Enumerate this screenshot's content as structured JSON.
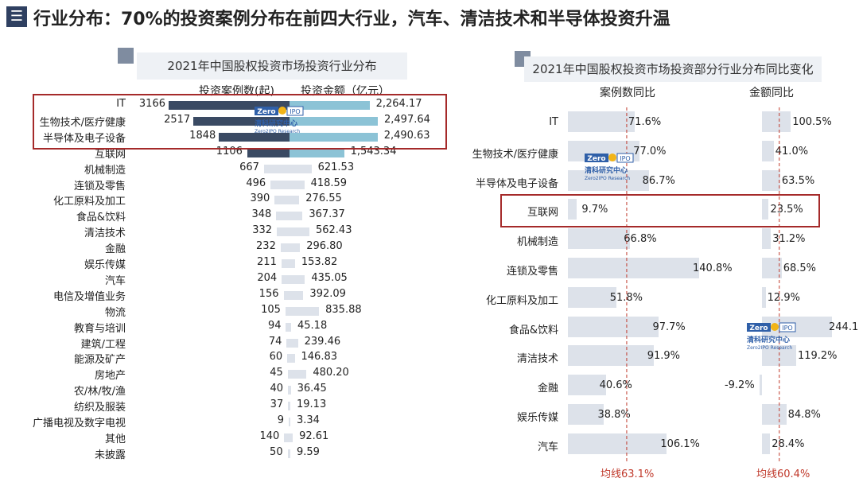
{
  "header": {
    "title": "行业分布：70%的投资案例分布在前四大行业，汽车、清洁技术和半导体投资升温",
    "menu_icon": "list-icon"
  },
  "chart_data": [
    {
      "type": "bar",
      "title": "2021年中国股权投资市场投资行业分布",
      "series": [
        {
          "name": "投资案例数(起)",
          "values": [
            3166,
            2517,
            1848,
            1106,
            667,
            496,
            390,
            348,
            332,
            232,
            211,
            204,
            156,
            105,
            94,
            74,
            60,
            45,
            40,
            37,
            9,
            140,
            50
          ]
        },
        {
          "name": "投资金额（亿元）",
          "values": [
            "2,264.17",
            "2,497.64",
            "2,490.63",
            "1,543.34",
            "621.53",
            "418.59",
            "276.55",
            "367.37",
            "562.43",
            "296.80",
            "153.82",
            "435.05",
            "392.09",
            "835.88",
            "45.18",
            "239.46",
            "146.83",
            "480.20",
            "36.45",
            "19.13",
            "3.34",
            "92.61",
            "9.59"
          ]
        }
      ],
      "categories": [
        "IT",
        "生物技术/医疗健康",
        "半导体及电子设备",
        "互联网",
        "机械制造",
        "连锁及零售",
        "化工原料及加工",
        "食品&饮料",
        "清洁技术",
        "金融",
        "娱乐传媒",
        "汽车",
        "电信及增值业务",
        "物流",
        "教育与培训",
        "建筑/工程",
        "能源及矿产",
        "房地产",
        "农/林/牧/渔",
        "纺织及服装",
        "广播电视及数字电视",
        "其他",
        "未披露"
      ],
      "colors": {
        "top_cases": "#3a4a63",
        "top_amount": "#8cc3d6",
        "other": "#dde2ea"
      }
    },
    {
      "type": "bar",
      "title": "2021年中国股权投资市场投资部分行业分布同比变化",
      "series": [
        {
          "name": "案例数同比",
          "values": [
            "71.6%",
            "77.0%",
            "86.7%",
            "9.7%",
            "66.8%",
            "140.8%",
            "51.8%",
            "97.7%",
            "91.9%",
            "40.6%",
            "38.8%",
            "106.1%"
          ]
        },
        {
          "name": "金额同比",
          "values": [
            "100.5%",
            "41.0%",
            "63.5%",
            "23.5%",
            "31.2%",
            "68.5%",
            "12.9%",
            "244.1%",
            "119.2%",
            "-9.2%",
            "84.8%",
            "28.4%"
          ]
        }
      ],
      "categories": [
        "IT",
        "生物技术/医疗健康",
        "半导体及电子设备",
        "互联网",
        "机械制造",
        "连锁及零售",
        "化工原料及加工",
        "食品&饮料",
        "清洁技术",
        "金融",
        "娱乐传媒",
        "汽车"
      ],
      "averages": {
        "cases_label": "均线63.1%",
        "amount_label": "均线60.4%",
        "cases": 63.1,
        "amount": 60.4
      },
      "colors": {
        "bar": "#dde2ea",
        "avg_line": "#c0392b"
      }
    }
  ],
  "logo": {
    "brand": "Zero",
    "brand2": "IPO",
    "name": "清科研究中心",
    "sub": "Zero2IPO Research"
  }
}
